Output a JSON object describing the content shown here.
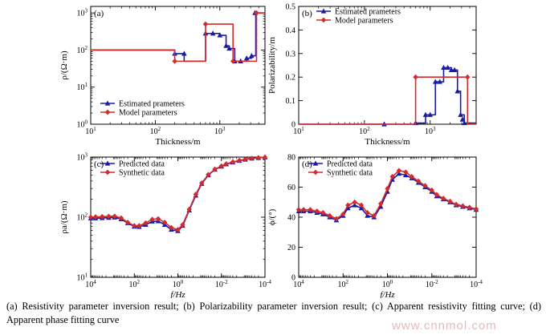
{
  "colors": {
    "estimated": "#1a1aa8",
    "model": "#d42a2a",
    "axis": "#000000"
  },
  "chart_data": [
    {
      "type": "line",
      "panel": "(a)",
      "xlabel": "Thickness/m",
      "ylabel": "ρ/(Ω·m)",
      "xscale": "log",
      "yscale": "log",
      "xlim": [
        10,
        5000
      ],
      "ylim": [
        1,
        1500
      ],
      "xticks": [
        {
          "v": 10,
          "b": "10",
          "e": "1"
        },
        {
          "v": 100,
          "b": "10",
          "e": "2"
        },
        {
          "v": 1000,
          "b": "10",
          "e": "3"
        }
      ],
      "yticks": [
        {
          "v": 1,
          "b": "10",
          "e": "0"
        },
        {
          "v": 10,
          "b": "10",
          "e": "1"
        },
        {
          "v": 100,
          "b": "10",
          "e": "2"
        },
        {
          "v": 1000,
          "b": "10",
          "e": "3"
        }
      ],
      "legend": {
        "placement": "bottom-left",
        "entries": [
          "Estimated prameters",
          "Model parameters"
        ]
      },
      "series": [
        {
          "name": "Estimated prameters",
          "color": "#1a1aa8",
          "marker": "triangle",
          "x": [
            10,
            200,
            200,
            280,
            280,
            600,
            600,
            1000,
            1000,
            1250,
            1250,
            1400,
            1400,
            1700,
            1700,
            2600,
            2600,
            3100,
            3100,
            3600,
            3600,
            5000
          ],
          "y": [
            100,
            100,
            80,
            80,
            50,
            50,
            280,
            280,
            250,
            250,
            130,
            130,
            110,
            110,
            50,
            50,
            60,
            60,
            70,
            70,
            1000,
            1000
          ],
          "marker_x": [
            200,
            280,
            600,
            780,
            1000,
            1250,
            1400,
            1700,
            2100,
            2600,
            3100,
            3500
          ],
          "marker_y": [
            80,
            80,
            280,
            280,
            250,
            130,
            110,
            50,
            50,
            60,
            70,
            1000
          ]
        },
        {
          "name": "Model parameters",
          "color": "#d42a2a",
          "marker": "diamond",
          "x": [
            10,
            200,
            200,
            600,
            600,
            1600,
            1600,
            3700,
            3700,
            5000
          ],
          "y": [
            100,
            100,
            50,
            50,
            500,
            500,
            50,
            50,
            1000,
            1000
          ],
          "marker_x": [
            200,
            600,
            1600,
            3700
          ],
          "marker_y": [
            50,
            500,
            50,
            1000
          ]
        }
      ]
    },
    {
      "type": "line",
      "panel": "(b)",
      "xlabel": "Thickness/m",
      "ylabel": "Polarizability/m",
      "xscale": "log",
      "yscale": "linear",
      "xlim": [
        10,
        5000
      ],
      "ylim": [
        0,
        0.5
      ],
      "xticks": [
        {
          "v": 10,
          "b": "10",
          "e": "1"
        },
        {
          "v": 100,
          "b": "10",
          "e": "2"
        },
        {
          "v": 1000,
          "b": "10",
          "e": "3"
        }
      ],
      "yticks": [
        {
          "v": 0,
          "t": "0"
        },
        {
          "v": 0.1,
          "t": "0.1"
        },
        {
          "v": 0.2,
          "t": "0.2"
        },
        {
          "v": 0.3,
          "t": "0.3"
        },
        {
          "v": 0.4,
          "t": "0.4"
        },
        {
          "v": 0.5,
          "t": "0.5"
        }
      ],
      "legend": {
        "placement": "top-left",
        "entries": [
          "Estimated prameters",
          "Model parameters"
        ]
      },
      "series": [
        {
          "name": "Estimated prameters",
          "color": "#1a1aa8",
          "marker": "triangle",
          "x": [
            10,
            600,
            600,
            850,
            850,
            1200,
            1200,
            1600,
            1600,
            2100,
            2100,
            2600,
            2600,
            2900,
            2900,
            3300,
            3300,
            5000
          ],
          "y": [
            0,
            0,
            0.005,
            0.005,
            0.04,
            0.04,
            0.18,
            0.18,
            0.24,
            0.24,
            0.23,
            0.23,
            0.14,
            0.14,
            0.04,
            0.04,
            0.005,
            0.005
          ],
          "marker_x": [
            200,
            600,
            850,
            1000,
            1200,
            1400,
            1600,
            1850,
            2100,
            2350,
            2600,
            2900,
            3100,
            3300
          ],
          "marker_y": [
            0,
            0.005,
            0.04,
            0.04,
            0.18,
            0.18,
            0.24,
            0.24,
            0.23,
            0.23,
            0.14,
            0.04,
            0.02,
            0.005
          ]
        },
        {
          "name": "Model parameters",
          "color": "#d42a2a",
          "marker": "diamond",
          "x": [
            10,
            600,
            600,
            3700,
            3700,
            5000
          ],
          "y": [
            0,
            0,
            0.2,
            0.2,
            0,
            0
          ],
          "marker_x": [
            600,
            3700
          ],
          "marker_y": [
            0.2,
            0.2
          ]
        }
      ]
    },
    {
      "type": "line",
      "panel": "(c)",
      "xlabel": "f/Hz",
      "ylabel": "ρa/(Ω·m)",
      "xscale": "log",
      "yscale": "log",
      "xreversed": true,
      "xlim": [
        10000,
        0.0001
      ],
      "ylim": [
        10,
        1000
      ],
      "xticks": [
        {
          "v": 10000,
          "b": "10",
          "e": "4"
        },
        {
          "v": 100,
          "b": "10",
          "e": "2"
        },
        {
          "v": 1,
          "b": "10",
          "e": "0"
        },
        {
          "v": 0.01,
          "b": "10",
          "e": "-2"
        },
        {
          "v": 0.0001,
          "b": "10",
          "e": "-4"
        }
      ],
      "yticks": [
        {
          "v": 10,
          "b": "10",
          "e": "1"
        },
        {
          "v": 100,
          "b": "10",
          "e": "2"
        },
        {
          "v": 1000,
          "b": "10",
          "e": "3"
        }
      ],
      "legend": {
        "placement": "top-left",
        "entries": [
          "Predicted data",
          "Synthetic data"
        ]
      },
      "series": [
        {
          "name": "Predicted data",
          "color": "#1a1aa8",
          "marker": "triangle",
          "x": [
            10000,
            6000,
            3000,
            1500,
            800,
            400,
            200,
            100,
            60,
            30,
            15,
            8,
            4,
            2,
            1,
            0.6,
            0.3,
            0.15,
            0.08,
            0.04,
            0.02,
            0.01,
            0.006,
            0.003,
            0.0015,
            0.0008,
            0.0004,
            0.0002,
            0.0001
          ],
          "y": [
            96,
            96,
            97,
            98,
            99,
            93,
            80,
            70,
            69,
            75,
            85,
            86,
            75,
            62,
            59,
            72,
            130,
            230,
            360,
            500,
            620,
            700,
            760,
            820,
            870,
            910,
            950,
            970,
            990
          ]
        },
        {
          "name": "Synthetic data",
          "color": "#d42a2a",
          "marker": "diamond",
          "x": [
            10000,
            6000,
            3000,
            1500,
            800,
            400,
            200,
            100,
            60,
            30,
            15,
            8,
            4,
            2,
            1,
            0.6,
            0.3,
            0.15,
            0.08,
            0.04,
            0.02,
            0.01,
            0.006,
            0.003,
            0.0015,
            0.0008,
            0.0004,
            0.0002,
            0.0001
          ],
          "y": [
            100,
            101,
            102,
            103,
            104,
            97,
            82,
            72,
            72,
            80,
            92,
            94,
            82,
            67,
            62,
            75,
            135,
            240,
            370,
            510,
            630,
            710,
            770,
            830,
            880,
            920,
            955,
            975,
            995
          ]
        }
      ]
    },
    {
      "type": "line",
      "panel": "(d)",
      "xlabel": "f/Hz",
      "ylabel": "ϕ/(°)",
      "xscale": "log",
      "yscale": "linear",
      "xreversed": true,
      "xlim": [
        10000,
        0.0001
      ],
      "ylim": [
        0,
        80
      ],
      "xticks": [
        {
          "v": 10000,
          "b": "10",
          "e": "4"
        },
        {
          "v": 100,
          "b": "10",
          "e": "2"
        },
        {
          "v": 1,
          "b": "10",
          "e": "0"
        },
        {
          "v": 0.01,
          "b": "10",
          "e": "-2"
        },
        {
          "v": 0.0001,
          "b": "10",
          "e": "-4"
        }
      ],
      "yticks": [
        {
          "v": 0,
          "t": "0"
        },
        {
          "v": 20,
          "t": "20"
        },
        {
          "v": 40,
          "t": "40"
        },
        {
          "v": 60,
          "t": "60"
        },
        {
          "v": 80,
          "t": "80"
        }
      ],
      "legend": {
        "placement": "top-left",
        "entries": [
          "Predicted data",
          "Synthetic data"
        ]
      },
      "series": [
        {
          "name": "Predicted data",
          "color": "#1a1aa8",
          "marker": "triangle",
          "x": [
            10000,
            6000,
            3000,
            1500,
            800,
            400,
            200,
            100,
            60,
            30,
            15,
            8,
            4,
            2,
            1,
            0.6,
            0.3,
            0.15,
            0.08,
            0.04,
            0.02,
            0.01,
            0.006,
            0.003,
            0.0015,
            0.0008,
            0.0004,
            0.0002,
            0.0001
          ],
          "y": [
            44,
            44,
            44,
            43,
            42,
            40,
            38,
            41,
            46,
            48,
            46,
            41,
            40,
            47,
            57,
            65,
            69,
            68,
            66,
            63,
            60,
            57,
            54,
            52,
            50,
            48,
            47,
            46,
            45
          ]
        },
        {
          "name": "Synthetic data",
          "color": "#d42a2a",
          "marker": "diamond",
          "x": [
            10000,
            6000,
            3000,
            1500,
            800,
            400,
            200,
            100,
            60,
            30,
            15,
            8,
            4,
            2,
            1,
            0.6,
            0.3,
            0.15,
            0.08,
            0.04,
            0.02,
            0.01,
            0.006,
            0.003,
            0.0015,
            0.0008,
            0.0004,
            0.0002,
            0.0001
          ],
          "y": [
            45,
            45,
            45,
            44,
            43,
            41,
            39,
            42,
            48,
            50,
            48,
            43,
            41,
            49,
            59,
            67,
            71,
            70,
            67,
            64,
            61,
            58,
            55,
            52.5,
            50.5,
            48.5,
            47.5,
            46.5,
            45.5
          ]
        }
      ]
    }
  ],
  "caption": {
    "line1": "(a) Resistivity parameter inversion result; (b) Polarizability parameter inversion result; (c) Apparent resistivity fitting",
    "line2": "curve; (d) Apparent phase fitting curve"
  },
  "watermark": "www.cnnmol.com"
}
